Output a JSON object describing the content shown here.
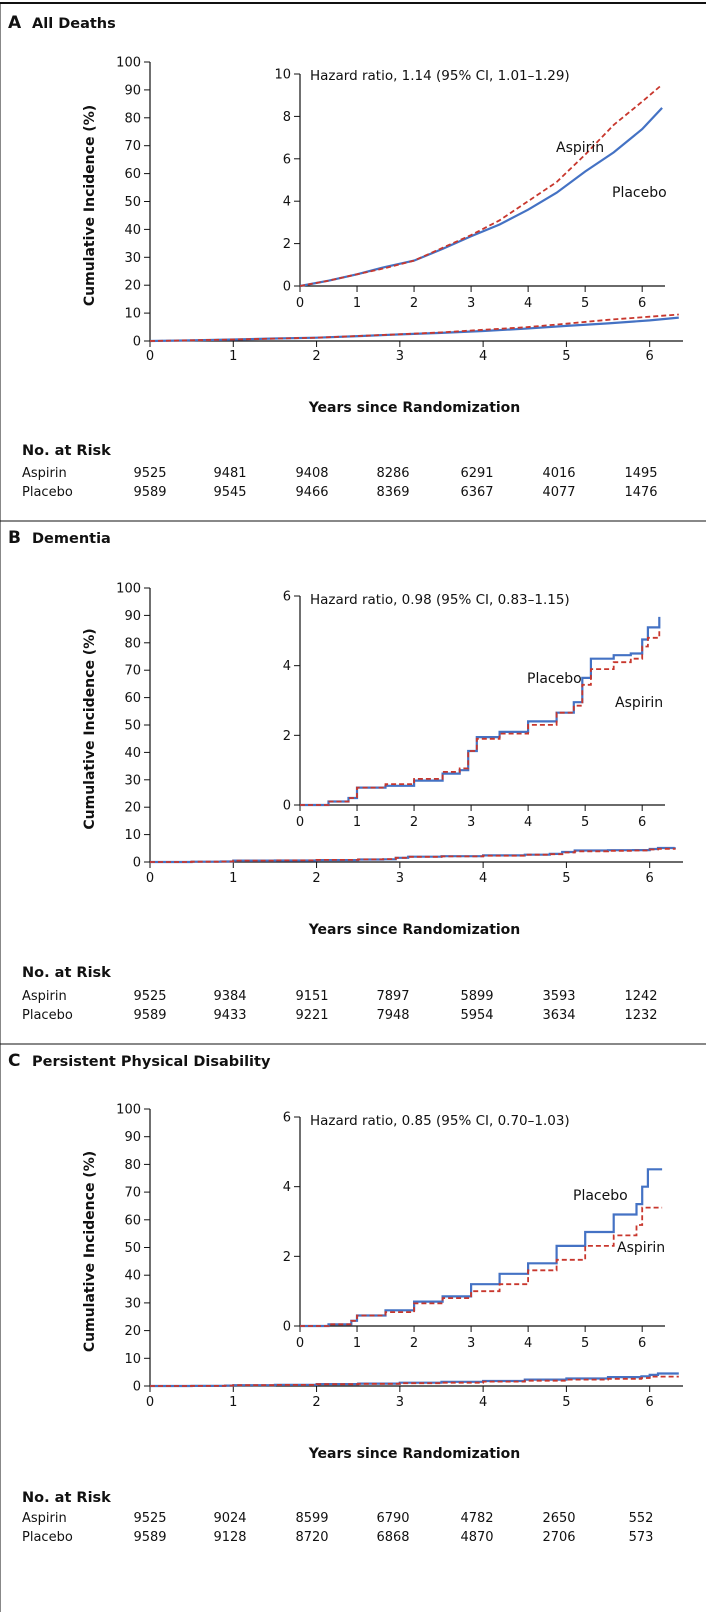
{
  "figure": {
    "xlabel": "Years since Randomization",
    "ylabel": "Cumulative Incidence (%)",
    "risk_title": "No. at Risk",
    "series_colors": {
      "Aspirin": "#c8372d",
      "Placebo": "#4472c4"
    }
  },
  "chart_data": [
    {
      "type": "line",
      "panel": "A",
      "title": "All Deaths",
      "xlabel": "Years since Randomization",
      "ylabel": "Cumulative Incidence (%)",
      "xlim": [
        0,
        6.4
      ],
      "ylim": [
        0,
        100
      ],
      "xticks": [
        "0",
        "1",
        "2",
        "3",
        "4",
        "5",
        "6"
      ],
      "yticks": [
        "0",
        "10",
        "20",
        "30",
        "40",
        "50",
        "60",
        "70",
        "80",
        "90",
        "100"
      ],
      "inset": {
        "annotation": "Hazard ratio, 1.14 (95% CI, 1.01–1.29)",
        "xlim": [
          0,
          6.4
        ],
        "ylim": [
          0,
          10
        ],
        "xticks": [
          "0",
          "1",
          "2",
          "3",
          "4",
          "5",
          "6"
        ],
        "yticks": [
          "0",
          "2",
          "4",
          "6",
          "8",
          "10"
        ],
        "label_order": [
          "Aspirin",
          "Placebo"
        ]
      },
      "series": [
        {
          "name": "Aspirin",
          "style": "dashed",
          "x": [
            0,
            0.5,
            1,
            1.5,
            2,
            2.5,
            3,
            3.5,
            4,
            4.5,
            5,
            5.5,
            6,
            6.35
          ],
          "y": [
            0,
            0.25,
            0.55,
            0.85,
            1.2,
            1.8,
            2.4,
            3.1,
            4.0,
            4.9,
            6.2,
            7.6,
            8.7,
            9.5
          ]
        },
        {
          "name": "Placebo",
          "style": "solid",
          "x": [
            0,
            0.5,
            1,
            1.5,
            2,
            2.5,
            3,
            3.5,
            4,
            4.5,
            5,
            5.5,
            6,
            6.35
          ],
          "y": [
            0,
            0.25,
            0.55,
            0.9,
            1.2,
            1.75,
            2.35,
            2.9,
            3.6,
            4.4,
            5.4,
            6.3,
            7.4,
            8.4
          ]
        }
      ],
      "at_risk": {
        "Aspirin": [
          "9525",
          "9481",
          "9408",
          "8286",
          "6291",
          "4016",
          "1495"
        ],
        "Placebo": [
          "9589",
          "9545",
          "9466",
          "8369",
          "6367",
          "4077",
          "1476"
        ]
      }
    },
    {
      "type": "line",
      "panel": "B",
      "title": "Dementia",
      "xlabel": "Years since Randomization",
      "ylabel": "Cumulative Incidence (%)",
      "xlim": [
        0,
        6.4
      ],
      "ylim": [
        0,
        100
      ],
      "xticks": [
        "0",
        "1",
        "2",
        "3",
        "4",
        "5",
        "6"
      ],
      "yticks": [
        "0",
        "10",
        "20",
        "30",
        "40",
        "50",
        "60",
        "70",
        "80",
        "90",
        "100"
      ],
      "inset": {
        "annotation": "Hazard ratio, 0.98 (95% CI, 0.83–1.15)",
        "xlim": [
          0,
          6.4
        ],
        "ylim": [
          0,
          6
        ],
        "xticks": [
          "0",
          "1",
          "2",
          "3",
          "4",
          "5",
          "6"
        ],
        "yticks": [
          "0",
          "2",
          "4",
          "6"
        ],
        "label_order": [
          "Placebo",
          "Aspirin"
        ]
      },
      "series": [
        {
          "name": "Aspirin",
          "style": "dashed",
          "x": [
            0,
            0.5,
            0.85,
            1.0,
            1.5,
            2.0,
            2.5,
            2.8,
            2.95,
            3.1,
            3.5,
            4.0,
            4.5,
            4.8,
            4.95,
            5.1,
            5.5,
            5.8,
            6.0,
            6.1,
            6.3
          ],
          "y": [
            0,
            0.1,
            0.2,
            0.5,
            0.6,
            0.75,
            0.95,
            1.05,
            1.55,
            1.9,
            2.05,
            2.3,
            2.65,
            2.85,
            3.45,
            3.9,
            4.1,
            4.2,
            4.55,
            4.8,
            5.0
          ]
        },
        {
          "name": "Placebo",
          "style": "solid",
          "x": [
            0,
            0.5,
            0.85,
            1.0,
            1.5,
            2.0,
            2.5,
            2.8,
            2.95,
            3.1,
            3.5,
            4.0,
            4.5,
            4.8,
            4.95,
            5.1,
            5.5,
            5.8,
            6.0,
            6.1,
            6.3
          ],
          "y": [
            0,
            0.1,
            0.2,
            0.5,
            0.55,
            0.7,
            0.9,
            1.0,
            1.55,
            1.95,
            2.1,
            2.4,
            2.65,
            2.95,
            3.65,
            4.2,
            4.3,
            4.35,
            4.75,
            5.1,
            5.4
          ]
        }
      ],
      "at_risk": {
        "Aspirin": [
          "9525",
          "9384",
          "9151",
          "7897",
          "5899",
          "3593",
          "1242"
        ],
        "Placebo": [
          "9589",
          "9433",
          "9221",
          "7948",
          "5954",
          "3634",
          "1232"
        ]
      }
    },
    {
      "type": "line",
      "panel": "C",
      "title": "Persistent Physical Disability",
      "xlabel": "Years since Randomization",
      "ylabel": "Cumulative Incidence (%)",
      "xlim": [
        0,
        6.4
      ],
      "ylim": [
        0,
        100
      ],
      "xticks": [
        "0",
        "1",
        "2",
        "3",
        "4",
        "5",
        "6"
      ],
      "yticks": [
        "0",
        "10",
        "20",
        "30",
        "40",
        "50",
        "60",
        "70",
        "80",
        "90",
        "100"
      ],
      "inset": {
        "annotation": "Hazard ratio, 0.85 (95% CI, 0.70–1.03)",
        "xlim": [
          0,
          6.4
        ],
        "ylim": [
          0,
          6
        ],
        "xticks": [
          "0",
          "1",
          "2",
          "3",
          "4",
          "5",
          "6"
        ],
        "yticks": [
          "0",
          "2",
          "4",
          "6"
        ],
        "label_order": [
          "Placebo",
          "Aspirin"
        ]
      },
      "series": [
        {
          "name": "Aspirin",
          "style": "dashed",
          "x": [
            0,
            0.5,
            0.9,
            1.0,
            1.5,
            2.0,
            2.5,
            3.0,
            3.5,
            4.0,
            4.5,
            5.0,
            5.5,
            5.9,
            6.0,
            6.35
          ],
          "y": [
            0,
            0.05,
            0.15,
            0.3,
            0.4,
            0.65,
            0.8,
            1.0,
            1.2,
            1.6,
            1.9,
            2.3,
            2.6,
            2.9,
            3.4,
            3.4
          ]
        },
        {
          "name": "Placebo",
          "style": "solid",
          "x": [
            0,
            0.5,
            0.9,
            1.0,
            1.5,
            2.0,
            2.5,
            3.0,
            3.5,
            4.0,
            4.5,
            5.0,
            5.5,
            5.9,
            6.0,
            6.1,
            6.35
          ],
          "y": [
            0,
            0.05,
            0.15,
            0.3,
            0.45,
            0.7,
            0.85,
            1.2,
            1.5,
            1.8,
            2.3,
            2.7,
            3.2,
            3.5,
            4.0,
            4.5,
            4.5
          ]
        }
      ],
      "at_risk": {
        "Aspirin": [
          "9525",
          "9024",
          "8599",
          "6790",
          "4782",
          "2650",
          "552"
        ],
        "Placebo": [
          "9589",
          "9128",
          "8720",
          "6868",
          "4870",
          "2706",
          "573"
        ]
      }
    }
  ]
}
